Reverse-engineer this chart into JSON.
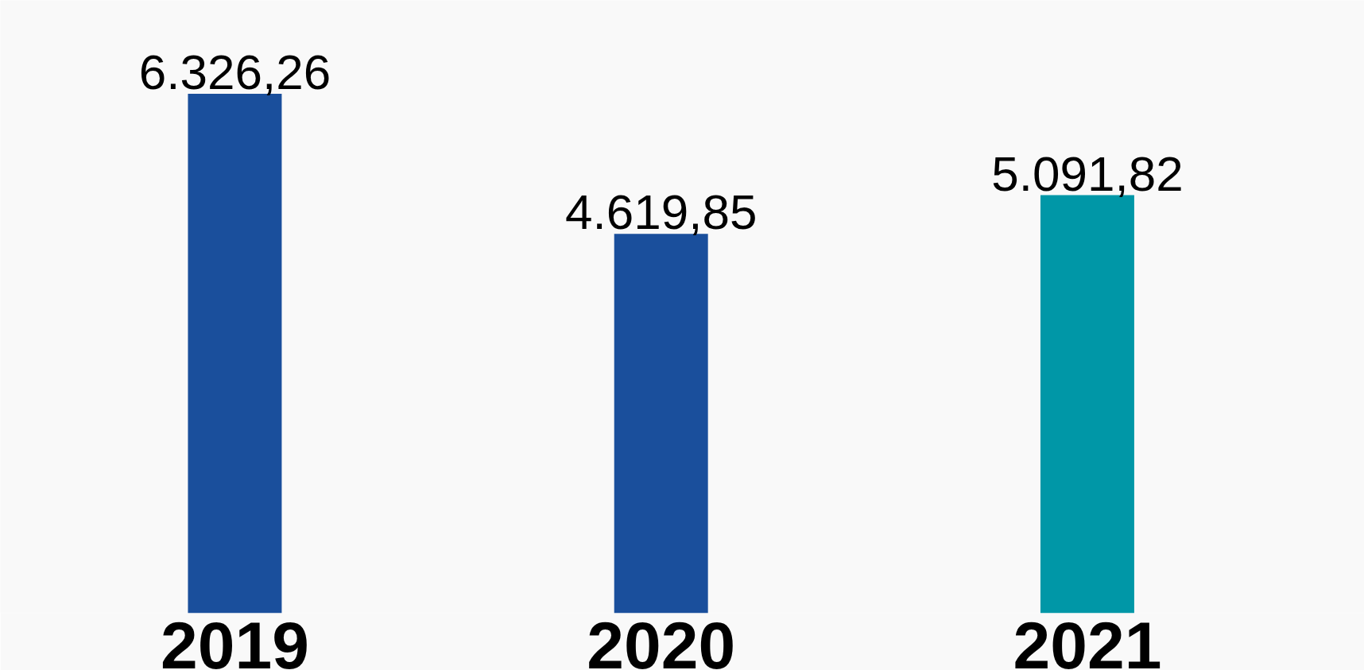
{
  "chart_data": {
    "type": "bar",
    "categories": [
      "2019",
      "2020",
      "2021"
    ],
    "values": [
      6326.26,
      4619.85,
      5091.82
    ],
    "colors": [
      "#1a4f9c",
      "#1a4f9c",
      "#0097a7"
    ],
    "value_labels": [
      "6.326,26",
      "4.619,85",
      "5.091,82"
    ],
    "tick_labels": "x"
  }
}
